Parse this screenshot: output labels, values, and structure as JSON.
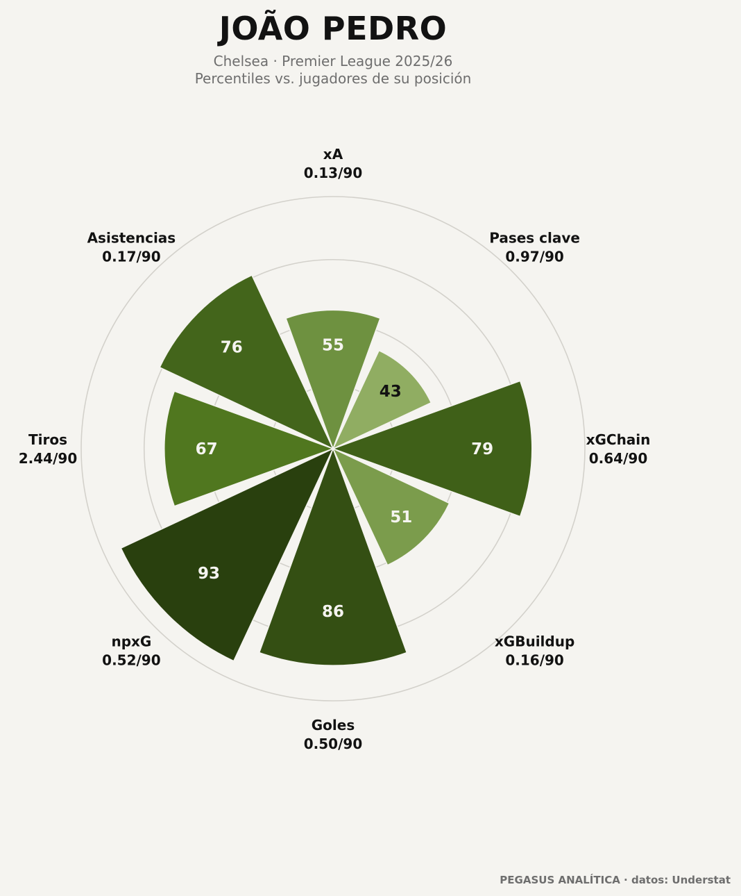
{
  "header": {
    "title": "JOÃO PEDRO",
    "subtitle_line1": "Chelsea · Premier League 2025/26",
    "subtitle_line2": "Percentiles vs. jugadores de su posición"
  },
  "footer": {
    "credit": "PEGASUS ANALÍTICA · datos: Understat"
  },
  "chart_data": {
    "type": "polar-bar",
    "title": "JOÃO PEDRO",
    "rmax": 100,
    "grid": true,
    "grid_rings": [
      25,
      50,
      75,
      100
    ],
    "categories": [
      {
        "name": "xA",
        "per90": "0.13/90",
        "percentile": 55,
        "color": "#6e9140",
        "text_color": "#f5f4f0"
      },
      {
        "name": "Pases clave",
        "per90": "0.97/90",
        "percentile": 43,
        "color": "#90ad62",
        "text_color": "#121212"
      },
      {
        "name": "xGChain",
        "per90": "0.64/90",
        "percentile": 79,
        "color": "#3f6018",
        "text_color": "#f5f4f0"
      },
      {
        "name": "xGBuildup",
        "per90": "0.16/90",
        "percentile": 51,
        "color": "#7b9c4c",
        "text_color": "#f5f4f0"
      },
      {
        "name": "Goles",
        "per90": "0.50/90",
        "percentile": 86,
        "color": "#344f13",
        "text_color": "#f5f4f0"
      },
      {
        "name": "npxG",
        "per90": "0.52/90",
        "percentile": 93,
        "color": "#29400e",
        "text_color": "#f5f4f0"
      },
      {
        "name": "Tiros",
        "per90": "2.44/90",
        "percentile": 67,
        "color": "#50771f",
        "text_color": "#f5f4f0"
      },
      {
        "name": "Asistencias",
        "per90": "0.17/90",
        "percentile": 76,
        "color": "#43651b",
        "text_color": "#f5f4f0"
      }
    ]
  }
}
